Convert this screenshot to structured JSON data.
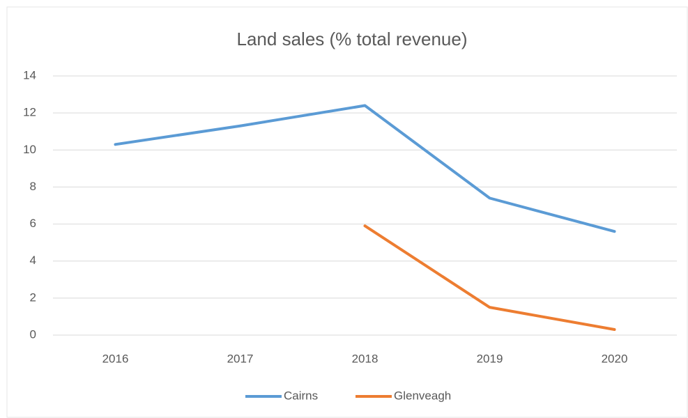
{
  "chart_data": {
    "type": "line",
    "title": "Land sales (% total revenue)",
    "categories": [
      "2016",
      "2017",
      "2018",
      "2019",
      "2020"
    ],
    "series": [
      {
        "name": "Cairns",
        "color": "#5b9bd5",
        "values": [
          10.3,
          11.3,
          12.4,
          7.4,
          5.6
        ]
      },
      {
        "name": "Glenveagh",
        "color": "#ed7d31",
        "values": [
          null,
          null,
          5.9,
          1.5,
          0.3
        ]
      }
    ],
    "ylim": [
      0,
      14
    ],
    "yticks": [
      0,
      2,
      4,
      6,
      8,
      10,
      12,
      14
    ],
    "grid": true,
    "legend": "bottom"
  }
}
